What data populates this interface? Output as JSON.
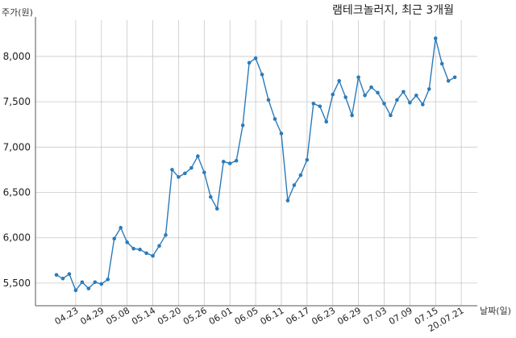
{
  "chart_data": {
    "type": "line",
    "title": "램테크놀러지, 최근 3개월",
    "xlabel": "날짜(일)",
    "ylabel": "주가(원)",
    "ylim": [
      5250,
      8400
    ],
    "yticks": [
      5500,
      6000,
      6500,
      7000,
      7500,
      8000
    ],
    "ytick_labels": [
      "5,500",
      "6,000",
      "6,500",
      "7,000",
      "7,500",
      "8,000"
    ],
    "grid": true,
    "line_color": "#2b7bb9",
    "xtick_labels": [
      "04.23",
      "04.29",
      "05.08",
      "05.14",
      "05.20",
      "05.26",
      "06.01",
      "06.05",
      "06.11",
      "06.17",
      "06.23",
      "06.29",
      "07.03",
      "07.09",
      "07.15",
      "20.07.21"
    ],
    "xtick_indices": [
      3,
      7,
      11,
      15,
      19,
      23,
      27,
      31,
      35,
      39,
      43,
      47,
      51,
      55,
      59,
      63
    ],
    "series": [
      {
        "values": [
          5590,
          5550,
          5600,
          5420,
          5510,
          5440,
          5510,
          5490,
          5540,
          5990,
          6110,
          5950,
          5880,
          5870,
          5830,
          5800,
          5910,
          6030,
          6750,
          6670,
          6710,
          6770,
          6900,
          6720,
          6450,
          6320,
          6840,
          6820,
          6850,
          7240,
          7930,
          7980,
          7800,
          7520,
          7310,
          7150,
          6410,
          6580,
          6690,
          6860,
          7480,
          7450,
          7280,
          7580,
          7730,
          7550,
          7350,
          7770,
          7570,
          7660,
          7600,
          7480,
          7350,
          7520,
          7610,
          7490,
          7570,
          7470,
          7640,
          8200,
          7920,
          7730,
          7770
        ]
      }
    ]
  }
}
